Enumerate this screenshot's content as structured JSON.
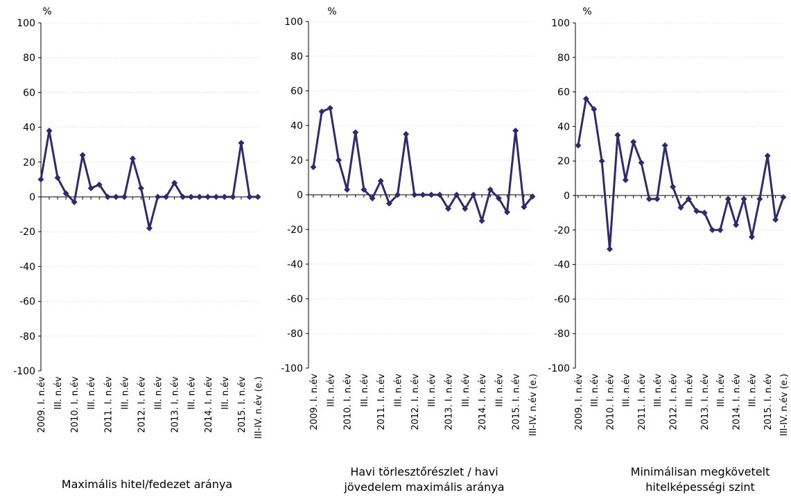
{
  "chart_data": [
    {
      "type": "line",
      "title_lines": [
        "Maximális hitel/fedezet aránya"
      ],
      "unit": "%",
      "ylim": [
        -100,
        100
      ],
      "yticks": [
        -100,
        -80,
        -60,
        -40,
        -20,
        0,
        20,
        40,
        60,
        80,
        100
      ],
      "categories": [
        "2009. I. n.év",
        "",
        "III. n.év",
        "",
        "2010. I. n.év",
        "",
        "III. n.év",
        "",
        "2011. I. n.év",
        "",
        "III. n.év",
        "",
        "2012. I. n.év",
        "",
        "III. n.év",
        "",
        "2013. I. n.év",
        "",
        "III. n.év",
        "",
        "2014. I. n.év",
        "",
        "III. n.év",
        "",
        "2015. I. n.év",
        "",
        "III-IV. n.év (e.)"
      ],
      "values": [
        10,
        38,
        11,
        2,
        -3,
        24,
        5,
        7,
        0,
        0,
        0,
        22,
        5,
        -18,
        0,
        0,
        8,
        0,
        0,
        0,
        0,
        0,
        0,
        0,
        31,
        0,
        0
      ],
      "color": "#2e2a6b",
      "grid": true
    },
    {
      "type": "line",
      "title_lines": [
        "Havi törlesztőrészlet / havi",
        "jövedelem maximális aránya"
      ],
      "unit": "%",
      "ylim": [
        -100,
        100
      ],
      "yticks": [
        -100,
        -80,
        -60,
        -40,
        -20,
        0,
        20,
        40,
        60,
        80,
        100
      ],
      "categories": [
        "2009. I. n.év",
        "",
        "III. n.év",
        "",
        "2010. I. n.év",
        "",
        "III. n.év",
        "",
        "2011. I. n.év",
        "",
        "III. n.év",
        "",
        "2012. I. n.év",
        "",
        "III. n.év",
        "",
        "2013. I. n.év",
        "",
        "III. n.év",
        "",
        "2014. I. n.év",
        "",
        "III. n.év",
        "",
        "2015. I. n.év",
        "",
        "III-IV. n.év (e.)"
      ],
      "values": [
        16,
        48,
        50,
        20,
        3,
        36,
        3,
        -2,
        8,
        -5,
        0,
        35,
        0,
        0,
        0,
        0,
        -8,
        0,
        -8,
        0,
        -15,
        3,
        -2,
        -10,
        37,
        -7,
        -1
      ],
      "color": "#2e2a6b",
      "grid": true
    },
    {
      "type": "line",
      "title_lines": [
        "Minimálisan megkövetelt",
        "hitelképességi szint"
      ],
      "unit": "%",
      "ylim": [
        -100,
        100
      ],
      "yticks": [
        -100,
        -80,
        -60,
        -40,
        -20,
        0,
        20,
        40,
        60,
        80,
        100
      ],
      "categories": [
        "2009. I. n.év",
        "",
        "III. n.év",
        "",
        "2010. I. n.év",
        "",
        "III. n.év",
        "",
        "2011. I. n.év",
        "",
        "III. n.év",
        "",
        "2012. I. n.év",
        "",
        "III. n.év",
        "",
        "2013. I. n.év",
        "",
        "III. n.év",
        "",
        "2014. I. n.év",
        "",
        "III. n.év",
        "",
        "2015. I. n.év",
        "",
        "III-IV. n.év (e.)"
      ],
      "values": [
        29,
        56,
        50,
        20,
        -31,
        35,
        9,
        31,
        19,
        -2,
        -2,
        29,
        5,
        -7,
        -2,
        -9,
        -10,
        -20,
        -20,
        -2,
        -17,
        -2,
        -24,
        -2,
        23,
        -14,
        -1
      ],
      "color": "#2e2a6b",
      "grid": true
    }
  ]
}
